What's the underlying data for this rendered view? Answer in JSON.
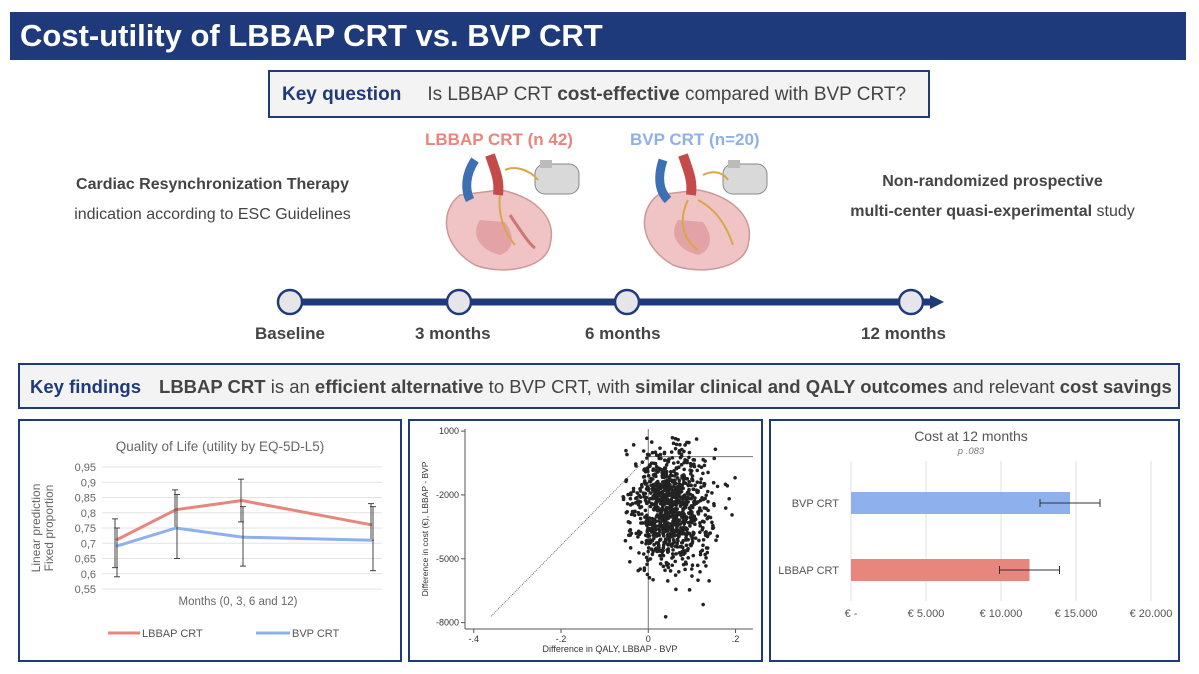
{
  "title": "Cost-utility of LBBAP CRT vs. BVP CRT",
  "key_question": {
    "label": "Key question",
    "text_pre": "Is LBBAP CRT ",
    "text_bold": "cost-effective",
    "text_post": " compared with BVP CRT?"
  },
  "left_info": {
    "line1": "Cardiac Resynchronization Therapy",
    "line2": "indication according to ESC Guidelines"
  },
  "right_info": {
    "line1": "Non-randomized prospective",
    "line2_bold": "multi-center quasi-experimental",
    "line2_rest": " study"
  },
  "devices": {
    "lbbap": "LBBAP CRT (n 42)",
    "bvp": "BVP CRT (n=20)"
  },
  "timeline": [
    "Baseline",
    "3 months",
    "6 months",
    "12 months"
  ],
  "key_findings": {
    "label": "Key findings",
    "p1_bold": "LBBAP CRT",
    "p2": " is an ",
    "p3_bold": "efficient alternative",
    "p4": " to BVP CRT, with ",
    "p5_bold": "similar clinical and QALY outcomes",
    "p6": " and relevant ",
    "p7_bold": "cost savings"
  },
  "colors": {
    "brand": "#1f3a7a",
    "lbbap": "#e8857c",
    "bvp": "#8eb0ec"
  },
  "chart_data": [
    {
      "type": "line",
      "title": "Quality of Life (utility by EQ-5D-L5)",
      "ylabel_line1": "Linear prediction",
      "ylabel_line2": "Fixed proportion",
      "xlabel": "Months (0, 3, 6 and 12)",
      "ylim": [
        0.55,
        0.95
      ],
      "yticks": [
        "0,95",
        "0,9",
        "0,85",
        "0,8",
        "0,75",
        "0,7",
        "0,65",
        "0,6",
        "0,55"
      ],
      "x": [
        0,
        3,
        6,
        12
      ],
      "series": [
        {
          "name": "LBBAP CRT",
          "values": [
            0.71,
            0.81,
            0.84,
            0.76
          ],
          "err_low": [
            0.62,
            0.75,
            0.77,
            0.71
          ],
          "err_high": [
            0.78,
            0.875,
            0.91,
            0.83
          ]
        },
        {
          "name": "BVP CRT",
          "values": [
            0.69,
            0.75,
            0.72,
            0.71
          ],
          "err_low": [
            0.59,
            0.65,
            0.625,
            0.61
          ],
          "err_high": [
            0.75,
            0.86,
            0.82,
            0.82
          ]
        }
      ]
    },
    {
      "type": "scatter",
      "xlabel": "Difference in QALY, LBBAP - BVP",
      "ylabel": "Difference in cost (€), LBBAP - BVP",
      "xlim": [
        -0.42,
        0.24
      ],
      "ylim": [
        -8300,
        1100
      ],
      "xticks": [
        "-.4",
        "-.2",
        "0",
        ".2"
      ],
      "yticks": [
        "1000",
        "-2000",
        "-5000",
        "-8000"
      ],
      "threshold_y": -200,
      "cluster": {
        "mean_x": 0.05,
        "mean_y": -2700,
        "sd_x": 0.045,
        "sd_y": 1350,
        "n": 1000
      }
    },
    {
      "type": "bar",
      "title": "Cost at 12 months",
      "subtitle": "p .083",
      "categories": [
        "BVP CRT",
        "LBBAP CRT"
      ],
      "values": [
        14600,
        11900
      ],
      "err_low": [
        12600,
        9900
      ],
      "err_high": [
        16600,
        13900
      ],
      "xlim": [
        0,
        20000
      ],
      "xticks": [
        "€ -",
        "€ 5.000",
        "€ 10.000",
        "€ 15.000",
        "€ 20.000"
      ]
    }
  ]
}
